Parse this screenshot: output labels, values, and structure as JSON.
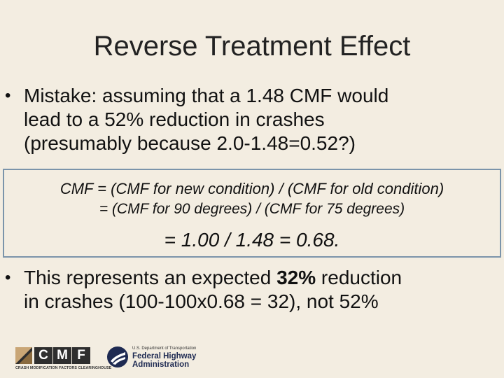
{
  "slide": {
    "title": "Reverse Treatment Effect"
  },
  "bullets": [
    {
      "marker": "•",
      "lines": [
        "Mistake: assuming that a 1.48 CMF would",
        "lead to a 52% reduction in crashes",
        "(presumably because 2.0-1.48=0.52?)"
      ]
    },
    {
      "marker": "•",
      "before": "This represents an expected ",
      "emphasis": "32%",
      "after": " reduction",
      "line2": "in crashes (100-100x0.68 = 32), not 52%"
    }
  ],
  "formula": {
    "line1": "CMF = (CMF for new condition) / (CMF for old condition)",
    "line2": "= (CMF for 90 degrees) / (CMF for 75 degrees)",
    "line3": "= 1.00 / 1.48 = 0.68."
  },
  "footer": {
    "cmf_letters": [
      "C",
      "M",
      "F"
    ],
    "cmf_subtitle": "CRASH MODIFICATION FACTORS CLEARINGHOUSE",
    "fhwa_dept": "U.S. Department of Transportation",
    "fhwa_name_1": "Federal Highway",
    "fhwa_name_2": "Administration"
  },
  "colors": {
    "background": "#f3ede1",
    "box_border": "#7b94aa",
    "fhwa_navy": "#1e2a52",
    "cmf_tan": "#c9a676"
  }
}
